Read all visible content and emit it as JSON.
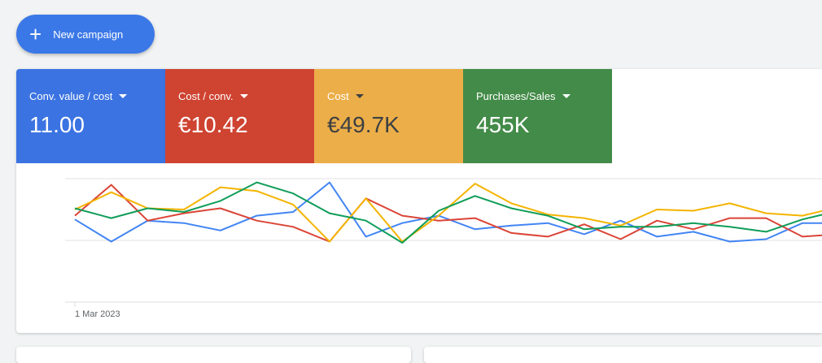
{
  "button": {
    "label": "New campaign"
  },
  "metrics": [
    {
      "label": "Conv. value / cost",
      "value": "11.00"
    },
    {
      "label": "Cost / conv.",
      "value": "€10.42"
    },
    {
      "label": "Cost",
      "value": "€49.7K"
    },
    {
      "label": "Purchases/Sales",
      "value": "455K"
    }
  ],
  "chart": {
    "type": "line",
    "x_label": "1 Mar 2023",
    "series": [
      {
        "color": "#4285f4",
        "values": [
          67,
          49,
          66,
          64,
          58,
          70,
          73,
          97,
          53,
          64,
          70,
          59,
          62,
          64,
          55,
          66,
          53,
          57,
          49,
          51,
          64,
          64
        ]
      },
      {
        "color": "#db4437",
        "values": [
          70,
          95,
          66,
          72,
          76,
          66,
          61,
          49,
          84,
          70,
          66,
          68,
          56,
          53,
          63,
          51,
          66,
          59,
          68,
          68,
          53,
          55
        ]
      },
      {
        "color": "#f4b400",
        "values": [
          75,
          89,
          76,
          75,
          93,
          90,
          79,
          49,
          84,
          49,
          70,
          96,
          80,
          71,
          68,
          62,
          75,
          74,
          80,
          72,
          70,
          77
        ]
      },
      {
        "color": "#0f9d58",
        "values": [
          76,
          68,
          76,
          73,
          82,
          97,
          88,
          72,
          66,
          48,
          74,
          86,
          76,
          70,
          59,
          61,
          61,
          64,
          61,
          57,
          67,
          74
        ]
      }
    ]
  }
}
